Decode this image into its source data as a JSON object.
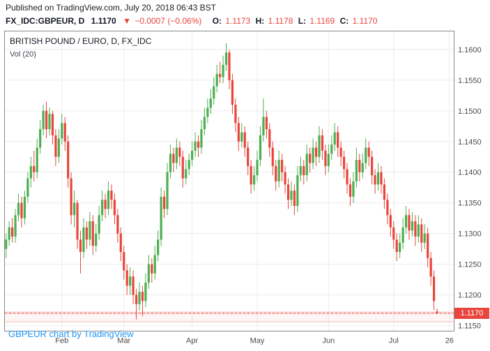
{
  "page": {
    "published_line": "Published on TradingView.com, July 20, 2018 06:43 BST"
  },
  "header": {
    "symbol": "FX_IDC:GBPEUR, D",
    "last_price": "1.1170",
    "arrow": "▼",
    "change": "−0.0007 (−0.06%)",
    "change_color": "#e8453c",
    "ohlc": [
      {
        "label": "O:",
        "value": "1.1173"
      },
      {
        "label": "H:",
        "value": "1.1178"
      },
      {
        "label": "L:",
        "value": "1.1169"
      },
      {
        "label": "C:",
        "value": "1.1170"
      }
    ]
  },
  "legend": {
    "title": "BRITISH POUND / EURO, D, FX_IDC",
    "indicator": "Vol (20)"
  },
  "attribution": {
    "text": "GBPEUR chart by TradingView",
    "color": "#2196f3"
  },
  "chart_data": {
    "type": "candlestick",
    "title": "BRITISH POUND / EURO, D, FX_IDC",
    "symbol": "GBPEUR",
    "timeframe": "D",
    "ylim": [
      1.1141,
      1.163
    ],
    "grid": true,
    "y_ticks": [
      "1.1600",
      "1.1550",
      "1.1500",
      "1.1450",
      "1.1400",
      "1.1350",
      "1.1300",
      "1.1250",
      "1.1200",
      "1.1150"
    ],
    "x_ticks": [
      {
        "label": "Feb",
        "index": 18
      },
      {
        "label": "Mar",
        "index": 38
      },
      {
        "label": "Apr",
        "index": 60
      },
      {
        "label": "May",
        "index": 81
      },
      {
        "label": "Jun",
        "index": 104
      },
      {
        "label": "Jul",
        "index": 125
      },
      {
        "label": "26",
        "index": 143
      }
    ],
    "right_padding_slots": 5,
    "last_price": 1.117,
    "price_label": "1.1170",
    "levels": [
      {
        "price": 1.1172,
        "color": "#f4bcbc"
      },
      {
        "price": 1.1156,
        "color": "#f4bcbc"
      }
    ],
    "zone": {
      "from": 1.1156,
      "to": 1.1172,
      "fill": "rgba(235,77,92,0.06)"
    },
    "colors": {
      "up": "#4caf50",
      "down": "#e8453c",
      "grid": "#ececec",
      "border": "#888888",
      "axis_text": "#4a4a4a",
      "price_line": "#e8453c"
    },
    "candles": [
      [
        "2018-01-08",
        1.1275,
        1.13,
        1.126,
        1.129
      ],
      [
        "2018-01-09",
        1.129,
        1.132,
        1.128,
        1.131
      ],
      [
        "2018-01-10",
        1.131,
        1.1325,
        1.1285,
        1.1295
      ],
      [
        "2018-01-11",
        1.1295,
        1.134,
        1.1285,
        1.133
      ],
      [
        "2018-01-12",
        1.133,
        1.1365,
        1.132,
        1.135
      ],
      [
        "2018-01-15",
        1.135,
        1.136,
        1.131,
        1.1325
      ],
      [
        "2018-01-16",
        1.1325,
        1.137,
        1.1315,
        1.136
      ],
      [
        "2018-01-17",
        1.136,
        1.14,
        1.135,
        1.139
      ],
      [
        "2018-01-18",
        1.139,
        1.1425,
        1.1375,
        1.141
      ],
      [
        "2018-01-19",
        1.141,
        1.1435,
        1.1385,
        1.14
      ],
      [
        "2018-01-22",
        1.14,
        1.1455,
        1.139,
        1.144
      ],
      [
        "2018-01-23",
        1.144,
        1.1485,
        1.143,
        1.147
      ],
      [
        "2018-01-24",
        1.147,
        1.151,
        1.146,
        1.15
      ],
      [
        "2018-01-25",
        1.15,
        1.1515,
        1.1455,
        1.147
      ],
      [
        "2018-01-26",
        1.147,
        1.1505,
        1.146,
        1.1495
      ],
      [
        "2018-01-29",
        1.1495,
        1.15,
        1.1445,
        1.146
      ],
      [
        "2018-01-30",
        1.146,
        1.147,
        1.141,
        1.1425
      ],
      [
        "2018-01-31",
        1.1425,
        1.147,
        1.1415,
        1.1455
      ],
      [
        "2018-02-01",
        1.1455,
        1.1495,
        1.1445,
        1.148
      ],
      [
        "2018-02-02",
        1.148,
        1.149,
        1.1435,
        1.145
      ],
      [
        "2018-02-05",
        1.145,
        1.146,
        1.1375,
        1.139
      ],
      [
        "2018-02-06",
        1.139,
        1.14,
        1.1315,
        1.133
      ],
      [
        "2018-02-07",
        1.133,
        1.137,
        1.131,
        1.135
      ],
      [
        "2018-02-08",
        1.135,
        1.1355,
        1.1275,
        1.129
      ],
      [
        "2018-02-09",
        1.129,
        1.1305,
        1.1235,
        1.127
      ],
      [
        "2018-02-12",
        1.127,
        1.1325,
        1.126,
        1.131
      ],
      [
        "2018-02-13",
        1.131,
        1.132,
        1.1275,
        1.129
      ],
      [
        "2018-02-14",
        1.129,
        1.1335,
        1.128,
        1.132
      ],
      [
        "2018-02-15",
        1.132,
        1.133,
        1.1265,
        1.128
      ],
      [
        "2018-02-16",
        1.128,
        1.1315,
        1.127,
        1.13
      ],
      [
        "2018-02-19",
        1.13,
        1.1345,
        1.129,
        1.133
      ],
      [
        "2018-02-20",
        1.133,
        1.137,
        1.132,
        1.1355
      ],
      [
        "2018-02-21",
        1.1355,
        1.1365,
        1.1325,
        1.134
      ],
      [
        "2018-02-22",
        1.134,
        1.1385,
        1.133,
        1.137
      ],
      [
        "2018-02-23",
        1.137,
        1.138,
        1.134,
        1.1355
      ],
      [
        "2018-02-26",
        1.1355,
        1.1365,
        1.1315,
        1.133
      ],
      [
        "2018-02-27",
        1.133,
        1.134,
        1.1285,
        1.13
      ],
      [
        "2018-02-28",
        1.13,
        1.131,
        1.1255,
        1.127
      ],
      [
        "2018-03-01",
        1.127,
        1.128,
        1.1225,
        1.124
      ],
      [
        "2018-03-02",
        1.124,
        1.125,
        1.12,
        1.1215
      ],
      [
        "2018-03-05",
        1.1215,
        1.1245,
        1.12,
        1.123
      ],
      [
        "2018-03-06",
        1.123,
        1.124,
        1.1185,
        1.12
      ],
      [
        "2018-03-07",
        1.12,
        1.121,
        1.116,
        1.1185
      ],
      [
        "2018-03-08",
        1.1185,
        1.122,
        1.1175,
        1.1205
      ],
      [
        "2018-03-09",
        1.1205,
        1.1215,
        1.1165,
        1.119
      ],
      [
        "2018-03-12",
        1.119,
        1.1235,
        1.118,
        1.122
      ],
      [
        "2018-03-13",
        1.122,
        1.1265,
        1.121,
        1.125
      ],
      [
        "2018-03-14",
        1.125,
        1.126,
        1.122,
        1.1235
      ],
      [
        "2018-03-15",
        1.1235,
        1.128,
        1.1225,
        1.1265
      ],
      [
        "2018-03-16",
        1.1265,
        1.1305,
        1.1255,
        1.129
      ],
      [
        "2018-03-19",
        1.129,
        1.1375,
        1.128,
        1.136
      ],
      [
        "2018-03-20",
        1.136,
        1.137,
        1.1325,
        1.134
      ],
      [
        "2018-03-21",
        1.134,
        1.1415,
        1.133,
        1.14
      ],
      [
        "2018-03-22",
        1.14,
        1.1445,
        1.139,
        1.143
      ],
      [
        "2018-03-23",
        1.143,
        1.144,
        1.14,
        1.1415
      ],
      [
        "2018-03-26",
        1.1415,
        1.1455,
        1.1405,
        1.144
      ],
      [
        "2018-03-27",
        1.144,
        1.145,
        1.141,
        1.1425
      ],
      [
        "2018-03-28",
        1.1425,
        1.1435,
        1.1375,
        1.139
      ],
      [
        "2018-03-29",
        1.139,
        1.142,
        1.138,
        1.1405
      ],
      [
        "2018-03-30",
        1.1405,
        1.143,
        1.1395,
        1.142
      ],
      [
        "2018-04-02",
        1.142,
        1.145,
        1.141,
        1.1435
      ],
      [
        "2018-04-03",
        1.1435,
        1.1465,
        1.1425,
        1.145
      ],
      [
        "2018-04-04",
        1.145,
        1.146,
        1.1425,
        1.144
      ],
      [
        "2018-04-05",
        1.144,
        1.1485,
        1.143,
        1.147
      ],
      [
        "2018-04-06",
        1.147,
        1.1505,
        1.146,
        1.149
      ],
      [
        "2018-04-09",
        1.149,
        1.152,
        1.148,
        1.1505
      ],
      [
        "2018-04-10",
        1.1505,
        1.1535,
        1.1495,
        1.152
      ],
      [
        "2018-04-11",
        1.152,
        1.1555,
        1.151,
        1.154
      ],
      [
        "2018-04-12",
        1.154,
        1.1575,
        1.153,
        1.156
      ],
      [
        "2018-04-13",
        1.156,
        1.158,
        1.1545,
        1.1555
      ],
      [
        "2018-04-16",
        1.1555,
        1.159,
        1.1545,
        1.1575
      ],
      [
        "2018-04-17",
        1.1575,
        1.161,
        1.1565,
        1.1595
      ],
      [
        "2018-04-18",
        1.1595,
        1.16,
        1.1535,
        1.155
      ],
      [
        "2018-04-19",
        1.155,
        1.156,
        1.1495,
        1.151
      ],
      [
        "2018-04-20",
        1.151,
        1.152,
        1.1465,
        1.148
      ],
      [
        "2018-04-23",
        1.148,
        1.149,
        1.1435,
        1.145
      ],
      [
        "2018-04-24",
        1.145,
        1.148,
        1.144,
        1.1465
      ],
      [
        "2018-04-25",
        1.1465,
        1.1475,
        1.1425,
        1.144
      ],
      [
        "2018-04-26",
        1.144,
        1.145,
        1.1395,
        1.141
      ],
      [
        "2018-04-27",
        1.141,
        1.142,
        1.1365,
        1.138
      ],
      [
        "2018-04-30",
        1.138,
        1.141,
        1.137,
        1.1395
      ],
      [
        "2018-05-01",
        1.1395,
        1.1435,
        1.1385,
        1.142
      ],
      [
        "2018-05-02",
        1.142,
        1.1475,
        1.141,
        1.146
      ],
      [
        "2018-05-03",
        1.146,
        1.152,
        1.145,
        1.149
      ],
      [
        "2018-05-04",
        1.149,
        1.15,
        1.1455,
        1.147
      ],
      [
        "2018-05-07",
        1.147,
        1.148,
        1.1425,
        1.144
      ],
      [
        "2018-05-08",
        1.144,
        1.145,
        1.1395,
        1.141
      ],
      [
        "2018-05-09",
        1.141,
        1.142,
        1.137,
        1.1385
      ],
      [
        "2018-05-10",
        1.1385,
        1.1435,
        1.1375,
        1.142
      ],
      [
        "2018-05-11",
        1.142,
        1.143,
        1.1385,
        1.14
      ],
      [
        "2018-05-14",
        1.14,
        1.141,
        1.1365,
        1.138
      ],
      [
        "2018-05-15",
        1.138,
        1.139,
        1.134,
        1.1355
      ],
      [
        "2018-05-16",
        1.1355,
        1.1385,
        1.1345,
        1.137
      ],
      [
        "2018-05-17",
        1.137,
        1.138,
        1.133,
        1.1345
      ],
      [
        "2018-05-18",
        1.1345,
        1.141,
        1.1335,
        1.1395
      ],
      [
        "2018-05-21",
        1.1395,
        1.1425,
        1.1385,
        1.141
      ],
      [
        "2018-05-22",
        1.141,
        1.142,
        1.138,
        1.1395
      ],
      [
        "2018-05-23",
        1.1395,
        1.1445,
        1.1385,
        1.143
      ],
      [
        "2018-05-24",
        1.143,
        1.144,
        1.14,
        1.1415
      ],
      [
        "2018-05-25",
        1.1415,
        1.1455,
        1.1405,
        1.144
      ],
      [
        "2018-05-28",
        1.144,
        1.145,
        1.141,
        1.1425
      ],
      [
        "2018-05-29",
        1.1425,
        1.1475,
        1.1415,
        1.146
      ],
      [
        "2018-05-30",
        1.146,
        1.147,
        1.142,
        1.1435
      ],
      [
        "2018-05-31",
        1.1435,
        1.1445,
        1.1395,
        1.141
      ],
      [
        "2018-06-01",
        1.141,
        1.1445,
        1.14,
        1.143
      ],
      [
        "2018-06-04",
        1.143,
        1.146,
        1.142,
        1.1445
      ],
      [
        "2018-06-05",
        1.1445,
        1.148,
        1.1435,
        1.1465
      ],
      [
        "2018-06-06",
        1.1465,
        1.1475,
        1.1425,
        1.144
      ],
      [
        "2018-06-07",
        1.144,
        1.145,
        1.141,
        1.1425
      ],
      [
        "2018-06-08",
        1.1425,
        1.1435,
        1.139,
        1.1405
      ],
      [
        "2018-06-11",
        1.1405,
        1.1415,
        1.1365,
        1.138
      ],
      [
        "2018-06-12",
        1.138,
        1.139,
        1.1345,
        1.136
      ],
      [
        "2018-06-13",
        1.136,
        1.14,
        1.135,
        1.1385
      ],
      [
        "2018-06-14",
        1.1385,
        1.144,
        1.1375,
        1.142
      ],
      [
        "2018-06-15",
        1.142,
        1.143,
        1.1385,
        1.14
      ],
      [
        "2018-06-18",
        1.14,
        1.143,
        1.139,
        1.1415
      ],
      [
        "2018-06-19",
        1.1415,
        1.1455,
        1.1405,
        1.144
      ],
      [
        "2018-06-20",
        1.144,
        1.145,
        1.141,
        1.1425
      ],
      [
        "2018-06-21",
        1.1425,
        1.1435,
        1.138,
        1.1395
      ],
      [
        "2018-06-22",
        1.1395,
        1.1405,
        1.1365,
        1.138
      ],
      [
        "2018-06-25",
        1.138,
        1.1415,
        1.137,
        1.14
      ],
      [
        "2018-06-26",
        1.14,
        1.141,
        1.1365,
        1.138
      ],
      [
        "2018-06-27",
        1.138,
        1.139,
        1.134,
        1.1355
      ],
      [
        "2018-06-28",
        1.1355,
        1.1365,
        1.1315,
        1.133
      ],
      [
        "2018-06-29",
        1.133,
        1.134,
        1.1295,
        1.131
      ],
      [
        "2018-07-02",
        1.131,
        1.132,
        1.1275,
        1.129
      ],
      [
        "2018-07-03",
        1.129,
        1.13,
        1.1255,
        1.127
      ],
      [
        "2018-07-04",
        1.127,
        1.13,
        1.126,
        1.1285
      ],
      [
        "2018-07-05",
        1.1285,
        1.1325,
        1.1275,
        1.131
      ],
      [
        "2018-07-06",
        1.131,
        1.1345,
        1.13,
        1.133
      ],
      [
        "2018-07-09",
        1.133,
        1.134,
        1.129,
        1.1305
      ],
      [
        "2018-07-10",
        1.1305,
        1.1335,
        1.1295,
        1.132
      ],
      [
        "2018-07-11",
        1.132,
        1.133,
        1.128,
        1.1295
      ],
      [
        "2018-07-12",
        1.1295,
        1.133,
        1.1285,
        1.1315
      ],
      [
        "2018-07-13",
        1.1315,
        1.1325,
        1.127,
        1.1285
      ],
      [
        "2018-07-16",
        1.1285,
        1.1315,
        1.1275,
        1.13
      ],
      [
        "2018-07-17",
        1.13,
        1.131,
        1.1245,
        1.126
      ],
      [
        "2018-07-18",
        1.126,
        1.127,
        1.1215,
        1.123
      ],
      [
        "2018-07-19",
        1.123,
        1.124,
        1.1175,
        1.119
      ],
      [
        "2018-07-20",
        1.1173,
        1.1178,
        1.1169,
        1.117
      ]
    ]
  }
}
